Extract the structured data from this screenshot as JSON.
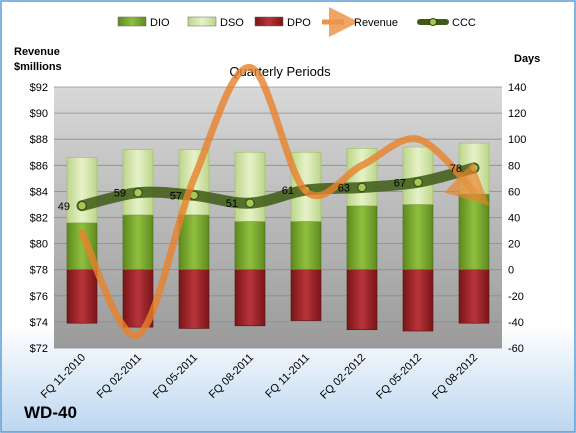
{
  "chart_data": {
    "type": "bar",
    "title": "Quarterly Periods",
    "company": "WD-40",
    "left_axis_title_line1": "Revenue",
    "left_axis_title_line2": "$millions",
    "right_axis_title": "Days",
    "categories": [
      "FQ 11-2010",
      "FQ 02-2011",
      "FQ 05-2011",
      "FQ 08-2011",
      "FQ 11-2011",
      "FQ 02-2012",
      "FQ 05-2012",
      "FQ 08-2012"
    ],
    "left_axis": {
      "min": 72,
      "max": 92,
      "step": 2,
      "tick_labels": [
        "$72",
        "$74",
        "$76",
        "$78",
        "$80",
        "$82",
        "$84",
        "$86",
        "$88",
        "$90",
        "$92"
      ]
    },
    "right_axis": {
      "min": -60,
      "max": 140,
      "step": 20,
      "tick_labels": [
        "-60",
        "-40",
        "-20",
        "0",
        "20",
        "40",
        "60",
        "80",
        "100",
        "120",
        "140"
      ]
    },
    "series": [
      {
        "name": "DIO",
        "axis": "right",
        "kind": "stacked-bar",
        "values": [
          36,
          42,
          42,
          37,
          37,
          49,
          50,
          58
        ],
        "color": "#7ea832"
      },
      {
        "name": "DSO",
        "axis": "right",
        "kind": "stacked-bar",
        "values": [
          50,
          50,
          50,
          53,
          53,
          44,
          44,
          39
        ],
        "color": "#d6e8a8"
      },
      {
        "name": "DPO",
        "axis": "right",
        "kind": "negative-bar",
        "values": [
          -41,
          -44,
          -45,
          -43,
          -39,
          -46,
          -47,
          -41
        ],
        "color": "#a8262b"
      },
      {
        "name": "Revenue",
        "axis": "left",
        "kind": "line",
        "values": [
          80.8,
          73,
          85,
          93.5,
          84,
          86,
          88,
          84
        ],
        "color": "#e8822c"
      },
      {
        "name": "CCC",
        "axis": "right",
        "kind": "line",
        "values": [
          49,
          59,
          57,
          51,
          61,
          63,
          67,
          78
        ],
        "color": "#4c6420"
      }
    ],
    "data_labels": [
      "49",
      "59",
      "57",
      "51",
      "61",
      "63",
      "67",
      "78"
    ],
    "legend_position": "top",
    "grid": true,
    "colors": {
      "plot_bg": "#a8a8a8",
      "frame_bg": "#ffffff",
      "border": "#5b9bd5"
    }
  }
}
